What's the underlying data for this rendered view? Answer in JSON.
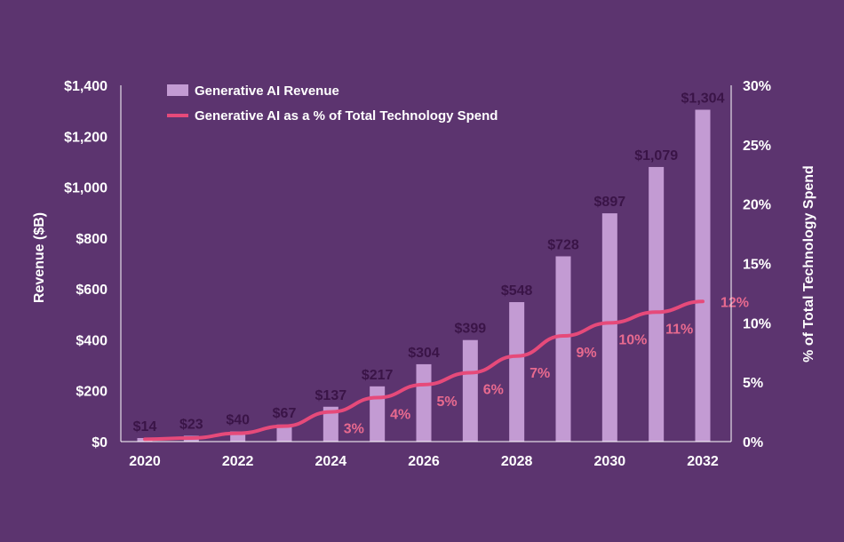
{
  "chart_data": {
    "type": "bar",
    "categories": [
      "2020",
      "2021",
      "2022",
      "2023",
      "2024",
      "2025",
      "2026",
      "2027",
      "2028",
      "2029",
      "2030",
      "2031",
      "2032"
    ],
    "x_tick_labels": [
      "2020",
      "2022",
      "2024",
      "2026",
      "2028",
      "2030",
      "2032"
    ],
    "series": [
      {
        "name": "Generative AI Revenue",
        "type": "bar",
        "axis": "left",
        "values": [
          14,
          23,
          40,
          67,
          137,
          217,
          304,
          399,
          548,
          728,
          897,
          1079,
          1304
        ],
        "labels": [
          "$14",
          "$23",
          "$40",
          "$67",
          "$137",
          "$217",
          "$304",
          "$399",
          "$548",
          "$728",
          "$897",
          "$1,079",
          "$1,304"
        ],
        "color": "#c39bd3"
      },
      {
        "name": "Generative AI as a % of Total Technology Spend",
        "type": "line",
        "axis": "right",
        "values": [
          0.2,
          0.3,
          0.7,
          1.3,
          2.5,
          3.7,
          4.8,
          5.8,
          7.2,
          8.9,
          10.0,
          10.9,
          11.8
        ],
        "labels": [
          "",
          "",
          "",
          "",
          "3%",
          "4%",
          "5%",
          "6%",
          "7%",
          "9%",
          "10%",
          "11%",
          "12%"
        ],
        "color": "#e64a7a"
      }
    ],
    "y_left": {
      "label": "Revenue ($B)",
      "range": [
        0,
        1400
      ],
      "ticks": [
        0,
        200,
        400,
        600,
        800,
        1000,
        1200,
        1400
      ],
      "tick_labels": [
        "$0",
        "$200",
        "$400",
        "$600",
        "$800",
        "$1,000",
        "$1,200",
        "$1,400"
      ]
    },
    "y_right": {
      "label": "% of Total Technology Spend",
      "range": [
        0,
        30
      ],
      "ticks": [
        0,
        5,
        10,
        15,
        20,
        25,
        30
      ],
      "tick_labels": [
        "0%",
        "5%",
        "10%",
        "15%",
        "20%",
        "25%",
        "30%"
      ]
    },
    "grid": false,
    "legend_position": "top-left",
    "background_color": "#5c346f",
    "title": "",
    "xlabel": ""
  }
}
